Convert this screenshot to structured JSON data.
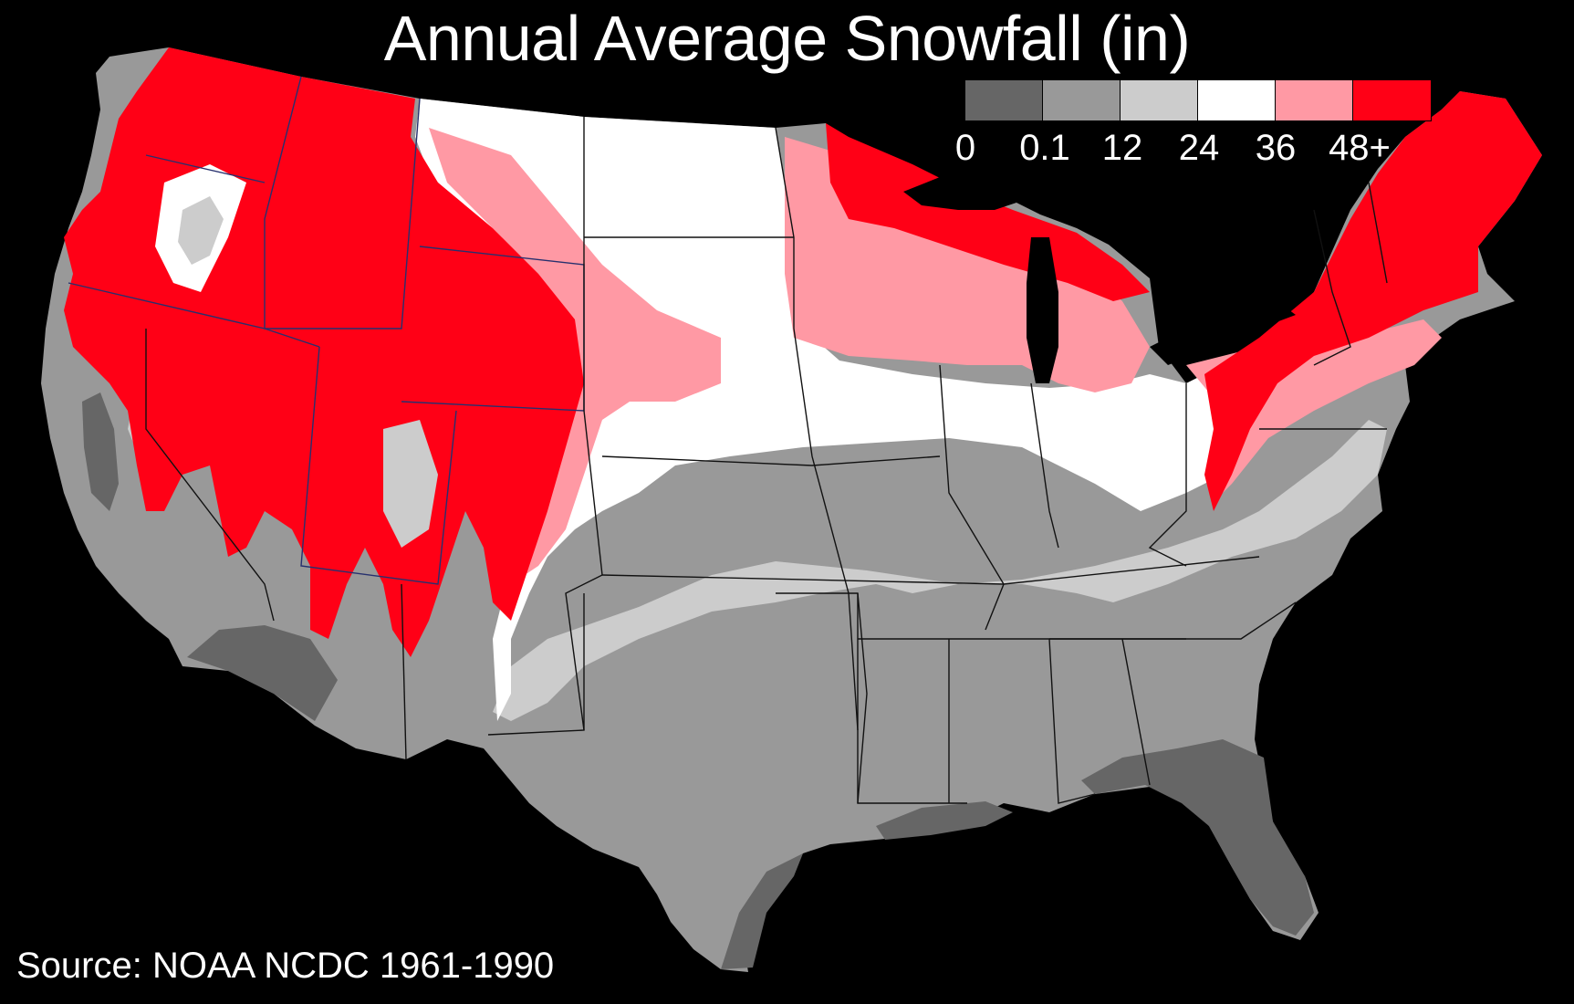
{
  "title": "Annual Average Snowfall (in)",
  "legend": {
    "items": [
      {
        "color": "#666666",
        "label": "0"
      },
      {
        "color": "#999999",
        "label": "0.1"
      },
      {
        "color": "#cccccc",
        "label": "12"
      },
      {
        "color": "#ffffff",
        "label": "24"
      },
      {
        "color": "#ff99a4",
        "label": "36"
      },
      {
        "color": "#ff0016",
        "label": "48+"
      }
    ]
  },
  "source": "Source: NOAA NCDC 1961-1990",
  "colors": {
    "background": "#000000",
    "band_0": "#666666",
    "band_01": "#999999",
    "band_12": "#cccccc",
    "band_24": "#ffffff",
    "band_36": "#ff99a4",
    "band_48": "#ff0016"
  }
}
